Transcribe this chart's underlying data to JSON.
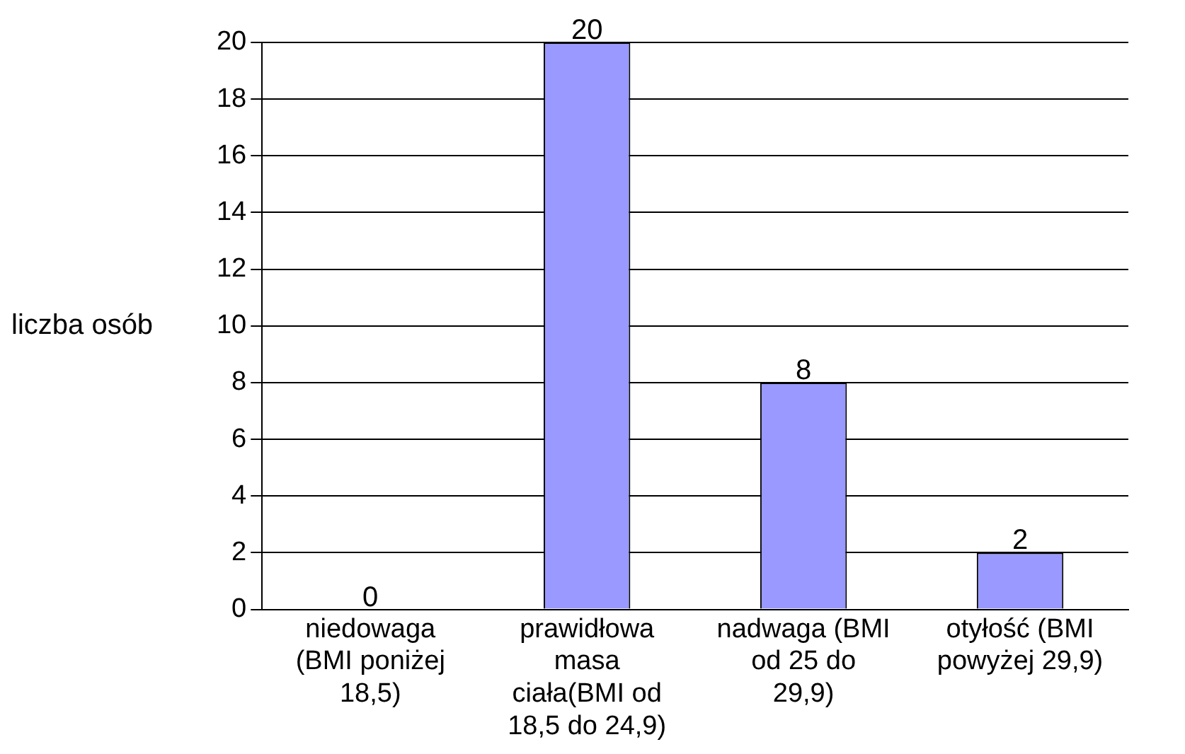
{
  "chart_data": {
    "type": "bar",
    "ylabel": "liczba osób",
    "categories": [
      "niedowaga (BMI poniżej 18,5)",
      "prawidłowa masa ciała(BMI od 18,5 do 24,9)",
      "nadwaga (BMI od 25 do 29,9)",
      "otyłość (BMI powyżej 29,9)"
    ],
    "values": [
      0,
      20,
      8,
      2
    ],
    "color": "#9999ff",
    "ylim": [
      0,
      20
    ],
    "yticks": [
      0,
      2,
      4,
      6,
      8,
      10,
      12,
      14,
      16,
      18,
      20
    ],
    "grid": "y",
    "data_labels": true,
    "legend": false
  }
}
